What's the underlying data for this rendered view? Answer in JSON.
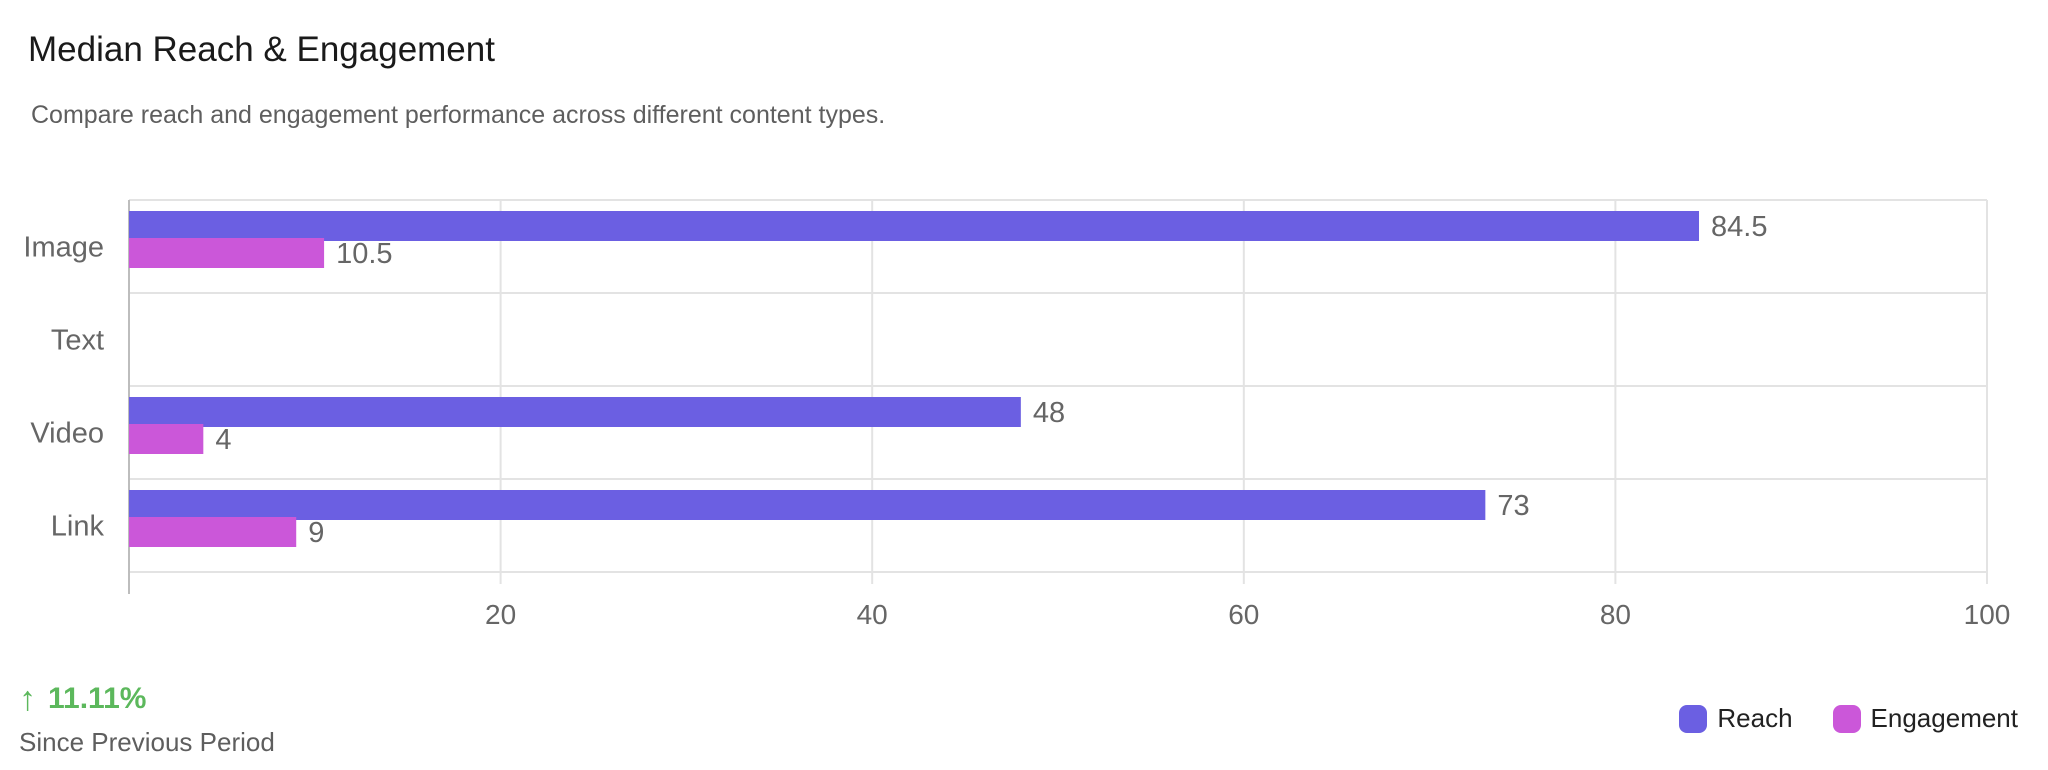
{
  "header": {
    "title": "Median Reach & Engagement",
    "subtitle": "Compare reach and engagement performance across different content types."
  },
  "chart_data": {
    "type": "bar",
    "orientation": "horizontal",
    "categories": [
      "Image",
      "Text",
      "Video",
      "Link"
    ],
    "series": [
      {
        "name": "Reach",
        "color": "#6B5FE2",
        "values": [
          84.5,
          null,
          48,
          73
        ]
      },
      {
        "name": "Engagement",
        "color": "#CB57D9",
        "values": [
          10.5,
          null,
          4,
          9
        ]
      }
    ],
    "xlim": [
      0,
      100
    ],
    "x_ticks": [
      20,
      40,
      60,
      80,
      100
    ],
    "grid": true,
    "legend_position": "bottom-right"
  },
  "footer": {
    "trend_arrow": "↑",
    "trend_value": "11.11%",
    "trend_color": "#5cb85c",
    "period_label": "Since Previous Period"
  }
}
